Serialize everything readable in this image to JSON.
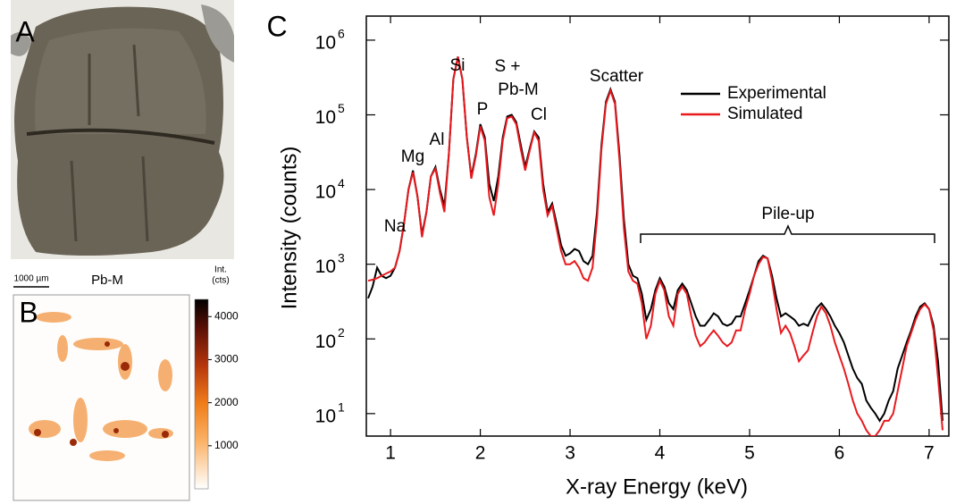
{
  "panel_labels": [
    "A",
    "B",
    "C"
  ],
  "map_b": {
    "title": "Pb-M",
    "scale_bar": "1000 µm",
    "colorbar_label": [
      "Int.",
      "(cts)"
    ],
    "clim": [
      0,
      4400
    ],
    "cticks": [
      1000,
      2000,
      3000,
      4000
    ]
  },
  "chart_data": {
    "type": "line",
    "xlabel": "X-ray Energy (keV)",
    "ylabel": "Intensity (counts)",
    "log_y": true,
    "legend": "upper right",
    "xlim": [
      0.73,
      7.22
    ],
    "xticks": [
      1,
      2,
      3,
      4,
      5,
      6,
      7
    ],
    "ylim": [
      5,
      2100000
    ],
    "yticks": [
      {
        "value": 10,
        "label": "10",
        "exponent": "1"
      },
      {
        "value": 100,
        "label": "10",
        "exponent": "2"
      },
      {
        "value": 1000,
        "label": "10",
        "exponent": "3"
      },
      {
        "value": 10000,
        "label": "10",
        "exponent": "4"
      },
      {
        "value": 100000,
        "label": "10",
        "exponent": "5"
      },
      {
        "value": 1000000,
        "label": "10",
        "exponent": "6"
      }
    ],
    "annotations": [
      "Na",
      "Mg",
      "Al",
      "Si",
      "P",
      "S +",
      "Pb-M",
      "Cl",
      "Scatter",
      "Pile-up"
    ],
    "x": [
      0.75,
      0.8,
      0.85,
      0.9,
      0.95,
      1.0,
      1.05,
      1.1,
      1.15,
      1.2,
      1.25,
      1.3,
      1.35,
      1.4,
      1.45,
      1.5,
      1.55,
      1.6,
      1.65,
      1.7,
      1.75,
      1.8,
      1.85,
      1.9,
      1.95,
      2.0,
      2.05,
      2.1,
      2.15,
      2.2,
      2.25,
      2.3,
      2.35,
      2.4,
      2.45,
      2.5,
      2.55,
      2.6,
      2.65,
      2.7,
      2.75,
      2.8,
      2.85,
      2.9,
      2.95,
      3.0,
      3.05,
      3.1,
      3.15,
      3.2,
      3.25,
      3.3,
      3.35,
      3.4,
      3.45,
      3.5,
      3.55,
      3.6,
      3.65,
      3.7,
      3.75,
      3.8,
      3.85,
      3.9,
      3.95,
      4.0,
      4.05,
      4.1,
      4.15,
      4.2,
      4.25,
      4.3,
      4.35,
      4.4,
      4.45,
      4.5,
      4.55,
      4.6,
      4.65,
      4.7,
      4.75,
      4.8,
      4.85,
      4.9,
      4.95,
      5.0,
      5.05,
      5.1,
      5.15,
      5.2,
      5.25,
      5.3,
      5.35,
      5.4,
      5.45,
      5.5,
      5.55,
      5.6,
      5.65,
      5.7,
      5.75,
      5.8,
      5.85,
      5.9,
      5.95,
      6.0,
      6.05,
      6.1,
      6.15,
      6.2,
      6.25,
      6.3,
      6.35,
      6.4,
      6.45,
      6.5,
      6.55,
      6.6,
      6.65,
      6.7,
      6.75,
      6.8,
      6.85,
      6.9,
      6.95,
      7.0,
      7.05,
      7.1,
      7.15
    ],
    "series": [
      {
        "name": "Experimental",
        "color": "#000000",
        "values": [
          350,
          500,
          900,
          700,
          650,
          700,
          900,
          1500,
          3500,
          10000,
          18000,
          8000,
          2500,
          5000,
          15000,
          20000,
          10000,
          6000,
          30000,
          300000,
          600000,
          300000,
          50000,
          15000,
          30000,
          75000,
          50000,
          12000,
          7000,
          15000,
          50000,
          95000,
          100000,
          80000,
          40000,
          20000,
          35000,
          60000,
          50000,
          12000,
          5000,
          6500,
          3500,
          1800,
          1300,
          1400,
          1600,
          1500,
          1100,
          1000,
          1300,
          5000,
          40000,
          150000,
          220000,
          150000,
          30000,
          4000,
          1000,
          700,
          650,
          400,
          180,
          250,
          450,
          650,
          500,
          300,
          250,
          450,
          550,
          450,
          300,
          200,
          150,
          150,
          180,
          220,
          200,
          160,
          150,
          160,
          200,
          200,
          300,
          450,
          700,
          1100,
          1300,
          1200,
          700,
          350,
          200,
          220,
          200,
          180,
          150,
          160,
          150,
          200,
          260,
          300,
          250,
          200,
          150,
          120,
          90,
          60,
          40,
          30,
          25,
          15,
          12,
          10,
          8,
          10,
          15,
          20,
          40,
          60,
          90,
          130,
          200,
          270,
          300,
          250,
          150,
          50,
          8
        ]
      },
      {
        "name": "Simulated",
        "color": "#e8191e",
        "values": [
          600,
          620,
          650,
          700,
          750,
          800,
          900,
          1500,
          3500,
          10000,
          17000,
          8000,
          2300,
          5000,
          15000,
          19000,
          9000,
          5000,
          30000,
          300000,
          600000,
          300000,
          50000,
          14000,
          28000,
          70000,
          45000,
          8000,
          4500,
          12000,
          45000,
          90000,
          95000,
          75000,
          35000,
          18000,
          33000,
          58000,
          45000,
          10000,
          4500,
          6000,
          3000,
          1500,
          1000,
          1000,
          1100,
          900,
          650,
          600,
          900,
          4000,
          35000,
          140000,
          210000,
          140000,
          25000,
          3000,
          800,
          600,
          550,
          300,
          100,
          150,
          400,
          600,
          450,
          200,
          150,
          400,
          500,
          400,
          200,
          110,
          80,
          90,
          110,
          130,
          110,
          90,
          80,
          90,
          130,
          130,
          250,
          400,
          700,
          1000,
          1250,
          1200,
          600,
          250,
          120,
          150,
          120,
          80,
          50,
          60,
          70,
          120,
          200,
          270,
          220,
          150,
          90,
          60,
          40,
          25,
          15,
          10,
          8,
          6,
          5,
          5,
          6,
          8,
          8,
          10,
          20,
          40,
          80,
          120,
          180,
          250,
          290,
          250,
          130,
          30,
          6
        ]
      }
    ]
  }
}
